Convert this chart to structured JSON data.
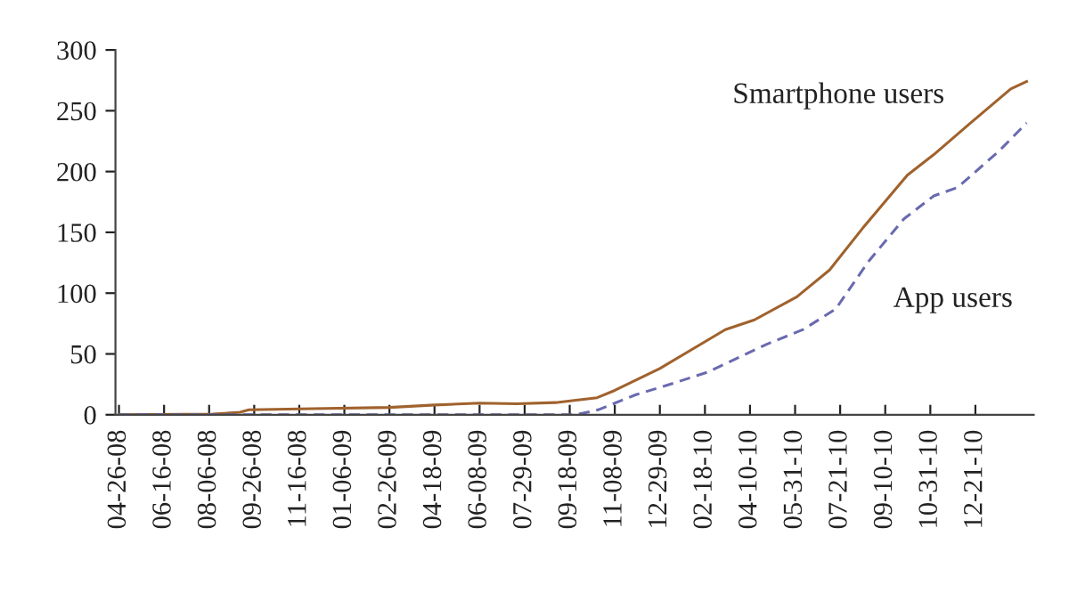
{
  "chart_data": {
    "type": "line",
    "xlim": [
      "2008-04-22",
      "2011-02-25"
    ],
    "xticks": [
      {
        "value": "2008-04-26",
        "label": "04-26-08"
      },
      {
        "value": "2008-06-16",
        "label": "06-16-08"
      },
      {
        "value": "2008-08-06",
        "label": "08-06-08"
      },
      {
        "value": "2008-09-26",
        "label": "09-26-08"
      },
      {
        "value": "2008-11-16",
        "label": "11-16-08"
      },
      {
        "value": "2009-01-06",
        "label": "01-06-09"
      },
      {
        "value": "2009-02-26",
        "label": "02-26-09"
      },
      {
        "value": "2009-04-18",
        "label": "04-18-09"
      },
      {
        "value": "2009-06-08",
        "label": "06-08-09"
      },
      {
        "value": "2009-07-29",
        "label": "07-29-09"
      },
      {
        "value": "2009-09-18",
        "label": "09-18-09"
      },
      {
        "value": "2009-11-08",
        "label": "11-08-09"
      },
      {
        "value": "2009-12-29",
        "label": "12-29-09"
      },
      {
        "value": "2010-02-18",
        "label": "02-18-10"
      },
      {
        "value": "2010-04-10",
        "label": "04-10-10"
      },
      {
        "value": "2010-05-31",
        "label": "05-31-10"
      },
      {
        "value": "2010-07-21",
        "label": "07-21-10"
      },
      {
        "value": "2010-09-10",
        "label": "09-10-10"
      },
      {
        "value": "2010-10-31",
        "label": "10-31-10"
      },
      {
        "value": "2010-12-21",
        "label": "12-21-10"
      }
    ],
    "ylim": [
      0,
      300
    ],
    "yticks": [
      0,
      50,
      100,
      150,
      200,
      250,
      300
    ],
    "grid": false,
    "legend": false,
    "series": [
      {
        "name": "Smartphone users",
        "color": "#a0622d",
        "line_style": "solid",
        "x": [
          "2008-04-26",
          "2008-08-10",
          "2008-09-10",
          "2008-09-20",
          "2008-12-01",
          "2009-02-26",
          "2009-04-18",
          "2009-06-08",
          "2009-07-20",
          "2009-09-02",
          "2009-09-25",
          "2009-10-19",
          "2009-11-08",
          "2009-12-29",
          "2010-03-13",
          "2010-04-15",
          "2010-06-02",
          "2010-07-09",
          "2010-08-15",
          "2010-10-05",
          "2010-11-04",
          "2010-12-14",
          "2011-01-30",
          "2011-02-17"
        ],
        "values": [
          0,
          0.5,
          2,
          4,
          5,
          6,
          8,
          9.5,
          9,
          10,
          12,
          14,
          20,
          38,
          70,
          78,
          97,
          119,
          153,
          197,
          214,
          239,
          268,
          274
        ]
      },
      {
        "name": "App users",
        "color": "#6a6ab0",
        "line_style": "dashed",
        "x": [
          "2008-04-26",
          "2009-09-25",
          "2009-10-20",
          "2009-12-02",
          "2010-01-05",
          "2010-02-21",
          "2010-04-29",
          "2010-06-09",
          "2010-07-16",
          "2010-08-22",
          "2010-10-01",
          "2010-11-04",
          "2010-12-01",
          "2011-01-17",
          "2011-02-17"
        ],
        "values": [
          0,
          0,
          4,
          16.5,
          24,
          35,
          58,
          70,
          87,
          126,
          161,
          180,
          187,
          217,
          240
        ]
      }
    ]
  }
}
